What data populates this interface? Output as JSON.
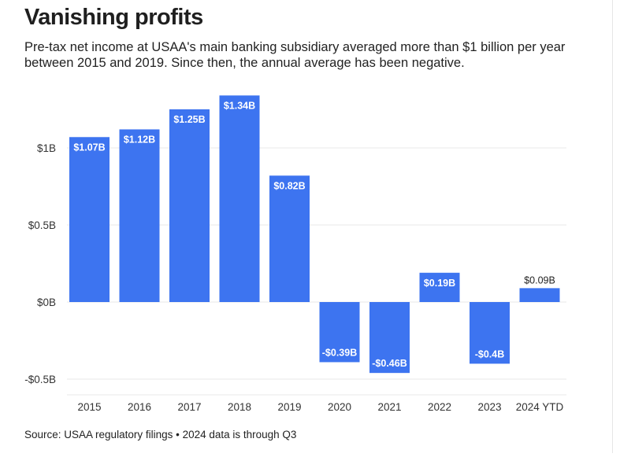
{
  "title": "Vanishing profits",
  "subtitle": "Pre-tax net income at USAA's main banking subsidiary averaged more than $1 billion per year between 2015 and 2019. Since then, the annual average has been negative.",
  "source": "Source: USAA regulatory filings • 2024 data is through Q3",
  "colors": {
    "bar": "#3d74f0",
    "grid": "#e9e9e9",
    "axis_text": "#333333",
    "label_inside": "#ffffff",
    "label_outside": "#222222"
  },
  "chart_data": {
    "type": "bar",
    "title": "",
    "xlabel": "",
    "ylabel": "",
    "categories": [
      "2015",
      "2016",
      "2017",
      "2018",
      "2019",
      "2020",
      "2021",
      "2022",
      "2023",
      "2024 YTD"
    ],
    "values": [
      1.07,
      1.12,
      1.25,
      1.34,
      0.82,
      -0.39,
      -0.46,
      0.19,
      -0.4,
      0.09
    ],
    "data_labels": [
      "$1.07B",
      "$1.12B",
      "$1.25B",
      "$1.34B",
      "$0.82B",
      "-$0.39B",
      "-$0.46B",
      "$0.19B",
      "-$0.4B",
      "$0.09B"
    ],
    "y_ticks": [
      1,
      0.5,
      0,
      -0.5
    ],
    "y_tick_labels": [
      "$1B",
      "$0.5B",
      "$0B",
      "-$0.5B"
    ],
    "ylim": [
      -0.6,
      1.35
    ],
    "grid": true,
    "legend": "none"
  }
}
